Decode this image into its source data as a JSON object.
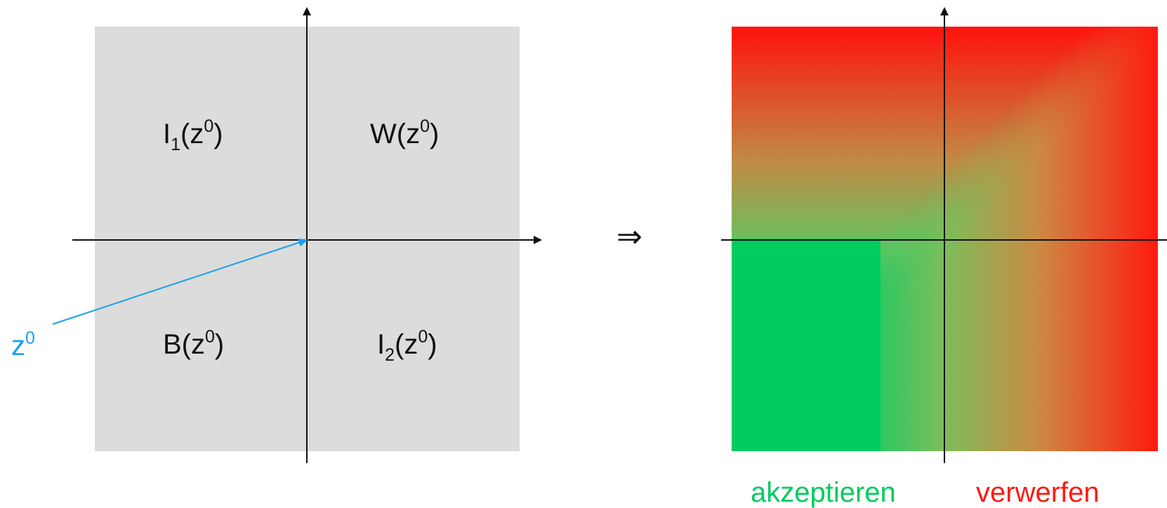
{
  "left_panel": {
    "quadrants": {
      "top_left": {
        "main": "I",
        "sub": "1",
        "open": "(z",
        "sup": "0",
        "close": ")"
      },
      "top_right": {
        "main": "W(z",
        "sup": "0",
        "close": ")"
      },
      "bottom_left": {
        "main": "B(z",
        "sup": "0",
        "close": ")"
      },
      "bottom_right": {
        "main": "I",
        "sub": "2",
        "open": "(z",
        "sup": "0",
        "close": ")"
      }
    },
    "point_label": {
      "main": "z",
      "sup": "0"
    },
    "region_color": "#dcdcdc",
    "point_color": "#1aa0f0"
  },
  "implies_symbol": "⇒",
  "right_panel": {
    "accept_label": "akzeptieren",
    "reject_label": "verwerfen",
    "accept_color": "#00cc60",
    "reject_color": "#ff1a10"
  }
}
